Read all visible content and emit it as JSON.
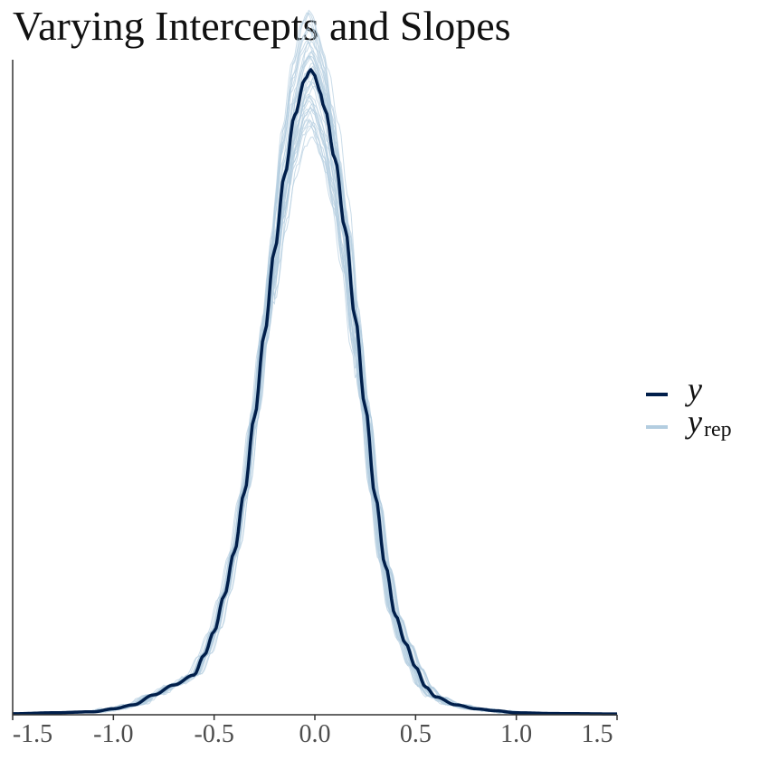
{
  "chart_data": {
    "type": "line",
    "title": "Varying Intercepts and Slopes",
    "xlabel": "",
    "ylabel": "",
    "xlim": [
      -1.5,
      1.5
    ],
    "ylim": [
      0,
      3.3
    ],
    "x_ticks": [
      "-1.5",
      "-1.0",
      "-0.5",
      "0.0",
      "0.5",
      "1.0",
      "1.5"
    ],
    "y_axis_ticks": "none",
    "grid": false,
    "legend_position": "right",
    "legend": [
      {
        "label": "y",
        "subscript": "",
        "color": "#011f4b"
      },
      {
        "label": "y",
        "subscript": "rep",
        "color": "#b3cde0"
      }
    ],
    "series": [
      {
        "role": "y",
        "color": "#011f4b",
        "x": [
          -1.5,
          -1.3,
          -1.1,
          -1.0,
          -0.9,
          -0.8,
          -0.7,
          -0.6,
          -0.55,
          -0.5,
          -0.45,
          -0.4,
          -0.35,
          -0.3,
          -0.25,
          -0.2,
          -0.15,
          -0.1,
          -0.05,
          -0.02,
          0.0,
          0.02,
          0.05,
          0.1,
          0.15,
          0.2,
          0.25,
          0.3,
          0.35,
          0.4,
          0.45,
          0.5,
          0.55,
          0.6,
          0.7,
          0.8,
          0.9,
          1.0,
          1.2,
          1.5
        ],
        "y": [
          0.005,
          0.01,
          0.015,
          0.03,
          0.05,
          0.1,
          0.15,
          0.2,
          0.3,
          0.42,
          0.6,
          0.82,
          1.12,
          1.5,
          1.92,
          2.34,
          2.72,
          3.02,
          3.2,
          3.25,
          3.22,
          3.15,
          3.05,
          2.8,
          2.45,
          2.0,
          1.55,
          1.1,
          0.75,
          0.5,
          0.36,
          0.24,
          0.14,
          0.09,
          0.05,
          0.03,
          0.02,
          0.01,
          0.006,
          0.004
        ]
      }
    ],
    "yrep_draws_shown": 40
  }
}
